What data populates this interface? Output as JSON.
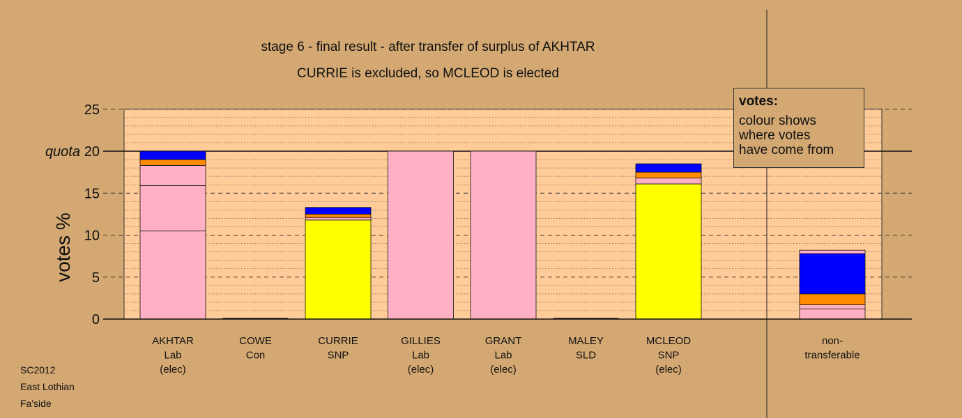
{
  "chart_data": {
    "type": "bar",
    "stacked": true,
    "title": "stage 6 - final result - after transfer of surplus of AKHTAR",
    "subtitle": "CURRIE is excluded, so MCLEOD is elected",
    "ylabel": "votes %",
    "ylim": [
      0,
      25
    ],
    "yticks": [
      0,
      5,
      10,
      15,
      20,
      25
    ],
    "quota": 20,
    "quota_label": "quota",
    "grid": true,
    "colors": {
      "pink": "#ffb0c4",
      "yellow": "#ffff00",
      "orange": "#ff8c00",
      "blue": "#0000ff",
      "plot_bg": "#ffcc99",
      "page_bg": "#d4a872"
    },
    "categories": [
      {
        "lines": [
          "AKHTAR",
          "Lab",
          "(elec)"
        ],
        "segments": [
          {
            "value": 10.5,
            "color": "pink"
          },
          {
            "value": 5.4,
            "color": "pink"
          },
          {
            "value": 2.4,
            "color": "pink"
          },
          {
            "value": 0.7,
            "color": "orange"
          },
          {
            "value": 1.0,
            "color": "blue"
          }
        ]
      },
      {
        "lines": [
          "COWE",
          "Con"
        ],
        "segments": []
      },
      {
        "lines": [
          "CURRIE",
          "SNP"
        ],
        "segments": [
          {
            "value": 11.8,
            "color": "yellow"
          },
          {
            "value": 0.3,
            "color": "pink"
          },
          {
            "value": 0.4,
            "color": "orange"
          },
          {
            "value": 0.8,
            "color": "blue"
          }
        ]
      },
      {
        "lines": [
          "GILLIES",
          "Lab",
          "(elec)"
        ],
        "segments": [
          {
            "value": 20.0,
            "color": "pink"
          }
        ]
      },
      {
        "lines": [
          "GRANT",
          "Lab",
          "(elec)"
        ],
        "segments": [
          {
            "value": 20.0,
            "color": "pink"
          }
        ]
      },
      {
        "lines": [
          "MALEY",
          "SLD"
        ],
        "segments": []
      },
      {
        "lines": [
          "MCLEOD",
          "SNP",
          "(elec)"
        ],
        "segments": [
          {
            "value": 16.1,
            "color": "yellow"
          },
          {
            "value": 0.7,
            "color": "pink"
          },
          {
            "value": 0.7,
            "color": "orange"
          },
          {
            "value": 1.0,
            "color": "blue"
          }
        ]
      },
      {
        "lines": [
          "non-",
          "transferable"
        ],
        "segments": [
          {
            "value": 1.2,
            "color": "pink"
          },
          {
            "value": 0.5,
            "color": "pink"
          },
          {
            "value": 1.3,
            "color": "orange"
          },
          {
            "value": 4.8,
            "color": "blue"
          },
          {
            "value": 0.4,
            "color": "pink"
          }
        ]
      }
    ],
    "legend": {
      "title": "votes:",
      "lines": [
        "colour shows",
        "where votes",
        "have come from"
      ],
      "placement": "top-right"
    },
    "footnote": [
      "SC2012",
      "East Lothian",
      "Fa'side"
    ]
  }
}
